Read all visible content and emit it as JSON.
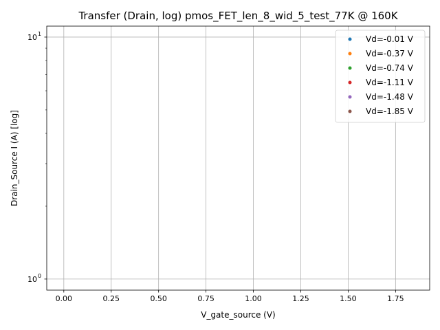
{
  "chart_data": {
    "type": "scatter",
    "title": "Transfer (Drain, log) pmos_FET_len_8_wid_5_test_77K @ 160K",
    "xlabel": "V_gate_source (V)",
    "ylabel": "Drain_Source I (A) [log]",
    "x_scale": "linear",
    "y_scale": "log",
    "xlim": [
      -0.09,
      1.93
    ],
    "ylim": [
      0.9,
      11.1
    ],
    "x_ticks": [
      {
        "value": 0.0,
        "label": "0.00"
      },
      {
        "value": 0.25,
        "label": "0.25"
      },
      {
        "value": 0.5,
        "label": "0.50"
      },
      {
        "value": 0.75,
        "label": "0.75"
      },
      {
        "value": 1.0,
        "label": "1.00"
      },
      {
        "value": 1.25,
        "label": "1.25"
      },
      {
        "value": 1.5,
        "label": "1.50"
      },
      {
        "value": 1.75,
        "label": "1.75"
      }
    ],
    "y_ticks": [
      {
        "value": 1,
        "label": "10",
        "exp": "0"
      },
      {
        "value": 10,
        "label": "10",
        "exp": "1"
      }
    ],
    "y_minor_ticks": [
      2,
      3,
      4,
      5,
      6,
      7,
      8,
      9
    ],
    "grid": true,
    "legend_position": "top-right",
    "series": [
      {
        "name": "Vd=-0.01 V",
        "color": "#1f77b4",
        "x": [],
        "y": []
      },
      {
        "name": "Vd=-0.37 V",
        "color": "#ff7f0e",
        "x": [],
        "y": []
      },
      {
        "name": "Vd=-0.74 V",
        "color": "#2ca02c",
        "x": [],
        "y": []
      },
      {
        "name": "Vd=-1.11 V",
        "color": "#d62728",
        "x": [],
        "y": []
      },
      {
        "name": "Vd=-1.48 V",
        "color": "#9467bd",
        "x": [],
        "y": []
      },
      {
        "name": "Vd=-1.85 V",
        "color": "#8c564b",
        "x": [],
        "y": []
      }
    ]
  }
}
